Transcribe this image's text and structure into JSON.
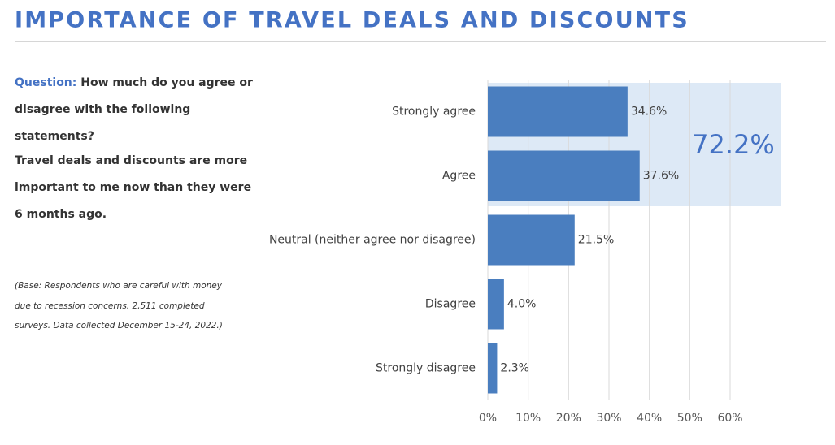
{
  "chart_data": {
    "type": "bar",
    "orientation": "horizontal",
    "title": "IMPORTANCE OF TRAVEL DEALS AND DISCOUNTS",
    "categories": [
      "Strongly agree",
      "Agree",
      "Neutral (neither agree nor disagree)",
      "Disagree",
      "Strongly disagree"
    ],
    "values": [
      34.6,
      37.6,
      21.5,
      4.0,
      2.3
    ],
    "value_labels": [
      "34.6%",
      "37.6%",
      "21.5%",
      "4.0%",
      "2.3%"
    ],
    "color": "#4a7ebf",
    "xlim": [
      0,
      60
    ],
    "xticks": [
      {
        "value": 0,
        "label": "0%"
      },
      {
        "value": 10,
        "label": "10%"
      },
      {
        "value": 20,
        "label": "20%"
      },
      {
        "value": 30,
        "label": "30%"
      },
      {
        "value": 40,
        "label": "40%"
      },
      {
        "value": 50,
        "label": "50%"
      },
      {
        "value": 60,
        "label": "60%"
      }
    ],
    "grid": true,
    "annotation": "72.2%"
  },
  "question_label": "Question:",
  "question": "How much do you agree or disagree with the following statements?",
  "statement": "Travel deals and discounts are more important to me now than they were 6 months ago.",
  "note": "(Base: Respondents who are careful with money due to recession concerns, 2,511 completed surveys. Data collected December 15-24, 2022.)"
}
